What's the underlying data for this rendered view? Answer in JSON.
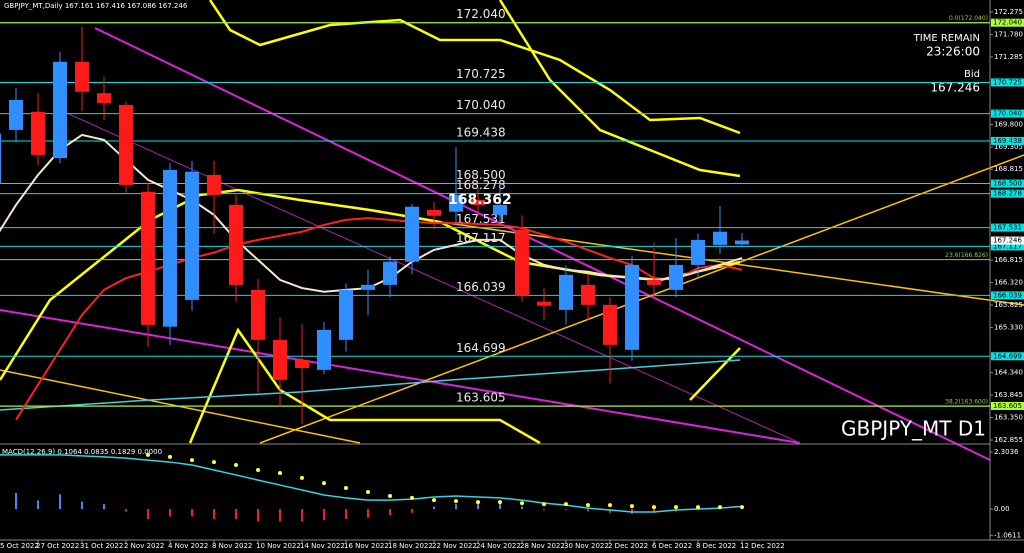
{
  "chart_data": {
    "type": "candlestick",
    "header": "GBPJPY_MT,Daily  167.161 167.416 167.086 167.246",
    "time_remain_label": "TIME REMAIN",
    "time_remain": "23:26:00",
    "bid_label": "Bid",
    "bid": "167.246",
    "symbol_label": "GBPJPY_MT D1",
    "current_label": "168.362",
    "categories": [
      "5 Oct 2022",
      null,
      "27 Oct 2022",
      null,
      "31 Oct 2022",
      null,
      "2 Nov 2022",
      null,
      "4 Nov 2022",
      null,
      "8 Nov 2022",
      null,
      "10 Nov 2022",
      null,
      "14 Nov 2022",
      null,
      "16 Nov 2022",
      null,
      "18 Nov 2022",
      null,
      "22 Nov 2022",
      null,
      "24 Nov 2022",
      null,
      "28 Nov 2022",
      null,
      "30 Nov 2022",
      null,
      "2 Dec 2022",
      null,
      "6 Dec 2022",
      null,
      "8 Dec 2022",
      null,
      "12 Dec 2022"
    ],
    "open": [
      168.5,
      169.68,
      170.08,
      169.06,
      171.18,
      170.49,
      170.23,
      168.32,
      165.35,
      165.94,
      168.69,
      168.03,
      166.16,
      165.06,
      164.62,
      164.4,
      165.06,
      166.16,
      166.27,
      166.78,
      167.92,
      167.88,
      168.14,
      167.81,
      167.48,
      165.9,
      165.72,
      166.27,
      165.83,
      164.84,
      166.38,
      166.16,
      166.71,
      167.15,
      167.161
    ],
    "high": [
      169.9,
      170.6,
      170.5,
      171.4,
      171.95,
      170.85,
      170.3,
      168.5,
      168.95,
      169.0,
      169.0,
      168.25,
      166.4,
      165.55,
      165.4,
      165.45,
      166.3,
      166.6,
      166.9,
      168.05,
      168.1,
      169.3,
      168.4,
      168.5,
      167.8,
      166.2,
      166.7,
      166.5,
      166.0,
      166.9,
      167.2,
      167.3,
      167.4,
      168.0,
      167.416
    ],
    "low": [
      168.3,
      169.4,
      168.9,
      168.95,
      170.1,
      169.9,
      168.3,
      164.9,
      164.95,
      165.7,
      167.4,
      165.9,
      163.9,
      163.6,
      163.2,
      164.3,
      164.8,
      165.6,
      166.0,
      166.5,
      167.5,
      167.6,
      167.8,
      167.6,
      165.9,
      165.5,
      165.4,
      165.5,
      164.1,
      164.6,
      166.0,
      166.0,
      166.4,
      166.95,
      167.086
    ],
    "close": [
      169.6,
      170.34,
      169.13,
      171.18,
      170.52,
      170.27,
      168.47,
      165.39,
      168.8,
      168.76,
      168.25,
      166.27,
      165.06,
      164.18,
      164.44,
      165.28,
      166.16,
      166.27,
      166.78,
      167.99,
      167.79,
      168.25,
      168.03,
      168.03,
      166.03,
      165.81,
      166.49,
      165.83,
      164.95,
      166.71,
      166.27,
      166.71,
      167.26,
      167.44,
      167.246
    ],
    "up_color": "#2f8fff",
    "down_color": "#ff1a1a",
    "ylim": [
      162.79,
      172.54
    ],
    "yticks": [
      172.275,
      {
        "value": 171.78,
        "label": "171.780"
      },
      171.285,
      {
        "value": 169.8,
        "label": "169.800"
      },
      169.305,
      168.815,
      166.815,
      {
        "value": 166.32,
        "label": "166.320"
      },
      165.825,
      {
        "value": 165.33,
        "label": "165.330"
      },
      {
        "value": 164.34,
        "label": "164.340"
      },
      163.845,
      {
        "value": 163.35,
        "label": "163.350"
      },
      162.855
    ],
    "levels": [
      {
        "price": 172.04,
        "label": "172.040",
        "color": "#adff2f"
      },
      {
        "price": 170.725,
        "label": "170.725",
        "color": "#00e5e5"
      },
      {
        "price": 170.04,
        "label": "170.040",
        "color": "#00e5e5"
      },
      {
        "price": 169.438,
        "label": "169.438",
        "color": "#00e5e5"
      },
      {
        "price": 168.5,
        "label": "168.500",
        "color": "#00e5e5"
      },
      {
        "price": 168.278,
        "label": "168.278",
        "color": "#00e5e5"
      },
      {
        "price": 167.531,
        "label": "167.531",
        "color": "#00e5e5"
      },
      {
        "price": 167.117,
        "label": "167.117",
        "color": "#00e5e5"
      },
      {
        "price": 166.039,
        "label": "166.039",
        "color": "#00e5e5"
      },
      {
        "price": 164.699,
        "label": "164.699",
        "color": "#00e5e5"
      },
      {
        "price": 163.605,
        "label": "163.605",
        "color": "#adff2f"
      }
    ],
    "fib_levels": [
      {
        "price": 172.04,
        "label": "0.0(172.040)"
      },
      {
        "price": 166.826,
        "label": "23.6(166.826)"
      },
      {
        "price": 163.6,
        "label": "38.2(163.600)"
      }
    ],
    "fib_color": "#9acd32",
    "moving_averages": [
      {
        "color": "#ff2020",
        "values": [
          null,
          163.3,
          164.07,
          164.84,
          165.61,
          166.16,
          166.42,
          166.56,
          166.71,
          166.86,
          166.98,
          167.15,
          167.26,
          167.35,
          167.44,
          167.59,
          167.7,
          167.74,
          167.7,
          167.66,
          167.63,
          167.63,
          167.61,
          167.59,
          167.52,
          167.37,
          167.22,
          167.04,
          166.86,
          166.71,
          166.42,
          166.38,
          166.64,
          166.71,
          166.6
        ]
      },
      {
        "color": "#f5e6d0",
        "values": [
          167.26,
          168.03,
          168.69,
          169.24,
          169.57,
          169.46,
          169.02,
          168.58,
          168.36,
          168.14,
          167.81,
          167.26,
          166.82,
          166.38,
          166.2,
          166.12,
          166.16,
          166.2,
          166.42,
          166.78,
          167.04,
          167.15,
          167.26,
          167.26,
          166.93,
          166.71,
          166.6,
          166.56,
          166.47,
          166.42,
          166.38,
          166.42,
          166.56,
          166.71,
          166.86
        ]
      }
    ],
    "macd": {
      "label": "MACD(12,26,9) 0.1064 0.0835 0.1829 0.0000",
      "ylim": [
        -1.17,
        2.59
      ],
      "yticks": [
        2.3036,
        {
          "value": 0,
          "label": "0.00"
        },
        -1.0611
      ],
      "main": {
        "color": "#2fd5e8",
        "values": [
          2.19,
          2.19,
          2.19,
          2.19,
          2.15,
          2.11,
          2.06,
          1.98,
          1.9,
          1.78,
          1.58,
          1.38,
          1.17,
          0.97,
          0.77,
          0.57,
          0.45,
          0.36,
          0.36,
          0.4,
          0.49,
          0.53,
          0.49,
          0.45,
          0.36,
          0.24,
          0.16,
          0.04,
          -0.04,
          -0.12,
          -0.12,
          -0.04,
          0.0,
          0.04,
          0.11
        ]
      },
      "signal": {
        "color": "#ffff33",
        "values": [
          null,
          null,
          null,
          null,
          null,
          null,
          null,
          2.19,
          2.11,
          1.98,
          1.9,
          1.78,
          1.58,
          1.46,
          1.26,
          1.05,
          0.85,
          0.69,
          0.53,
          0.45,
          0.36,
          0.32,
          0.28,
          0.28,
          0.24,
          0.2,
          0.2,
          0.16,
          0.16,
          0.12,
          0.08,
          0.08,
          0.08,
          0.08,
          0.08
        ]
      },
      "histogram": {
        "positive_color": "#2f8fff",
        "negative_color": "#ff1a1a",
        "values": [
          0.5,
          0.65,
          0.35,
          0.6,
          0.3,
          0.2,
          -0.1,
          -0.4,
          -0.3,
          -0.3,
          -0.4,
          -0.4,
          -0.5,
          -0.5,
          -0.5,
          -0.45,
          -0.4,
          -0.35,
          -0.25,
          -0.15,
          0.1,
          0.2,
          0.2,
          0.2,
          0.1,
          -0.05,
          -0.05,
          -0.1,
          -0.15,
          -0.2,
          -0.15,
          -0.1,
          -0.05,
          0.0,
          0.05
        ]
      }
    }
  }
}
